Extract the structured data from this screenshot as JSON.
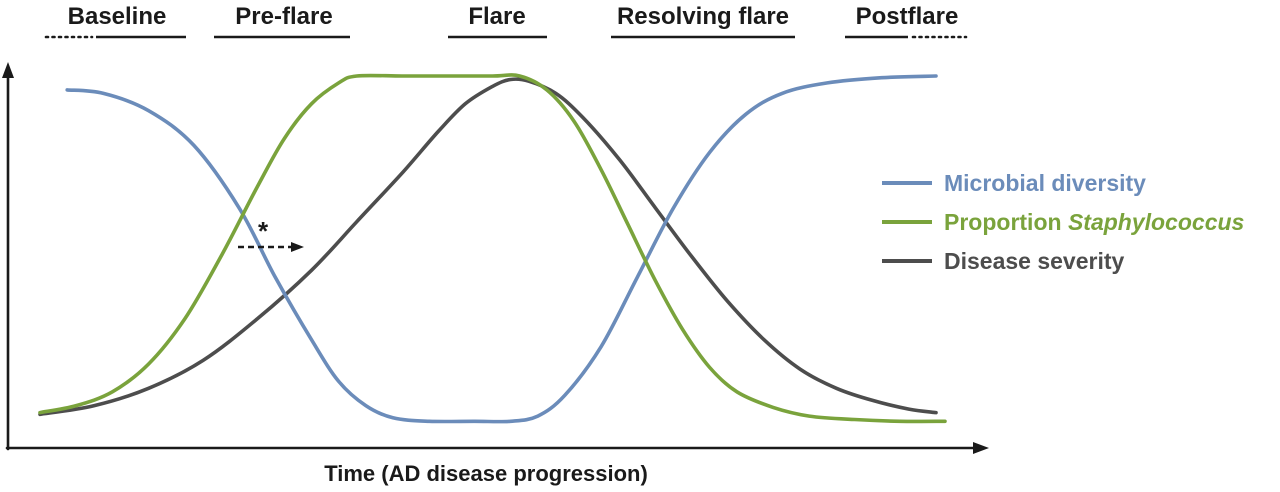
{
  "chart_data": {
    "type": "line",
    "title": "",
    "xlabel": "Time (AD disease progression)",
    "ylabel": "",
    "x_range": [
      0,
      100
    ],
    "y_range": [
      0,
      1
    ],
    "grid": false,
    "legend_position": "right",
    "phases": [
      "Baseline",
      "Pre-flare",
      "Flare",
      "Resolving flare",
      "Postflare"
    ],
    "annotation_symbol": "*",
    "series": [
      {
        "name": "Microbial diversity",
        "color": "#6b8cba",
        "x": [
          3,
          7,
          12,
          17,
          22,
          26,
          30,
          33,
          36,
          39,
          43,
          48,
          52,
          55,
          58,
          62,
          66,
          70,
          74,
          78,
          82,
          87,
          93,
          99
        ],
        "y": [
          0.96,
          0.95,
          0.9,
          0.8,
          0.62,
          0.42,
          0.24,
          0.12,
          0.05,
          0.015,
          0.005,
          0.005,
          0.005,
          0.02,
          0.08,
          0.22,
          0.42,
          0.62,
          0.78,
          0.89,
          0.95,
          0.98,
          0.995,
          1.0
        ]
      },
      {
        "name": "Proportion Staphylococcus",
        "label_prefix": "Proportion ",
        "label_italic": "Staphylococcus",
        "color": "#7aa33c",
        "x": [
          0,
          4,
          8,
          12,
          16,
          20,
          24,
          27,
          30,
          33,
          35,
          40,
          45,
          50,
          53,
          56,
          59,
          62,
          65,
          68,
          71,
          74,
          77,
          81,
          85,
          90,
          95,
          100
        ],
        "y": [
          0.03,
          0.05,
          0.09,
          0.17,
          0.3,
          0.48,
          0.68,
          0.82,
          0.92,
          0.98,
          1.0,
          1.0,
          1.0,
          1.0,
          1.0,
          0.96,
          0.87,
          0.73,
          0.57,
          0.41,
          0.27,
          0.16,
          0.09,
          0.045,
          0.02,
          0.01,
          0.005,
          0.005
        ]
      },
      {
        "name": "Disease severity",
        "color": "#4d4d4d",
        "x": [
          0,
          6,
          12,
          18,
          24,
          30,
          35,
          40,
          44,
          47,
          50,
          52,
          54,
          57,
          60,
          64,
          68,
          72,
          76,
          80,
          84,
          88,
          92,
          96,
          99
        ],
        "y": [
          0.025,
          0.05,
          0.1,
          0.18,
          0.3,
          0.44,
          0.58,
          0.72,
          0.84,
          0.92,
          0.97,
          0.99,
          0.985,
          0.95,
          0.88,
          0.76,
          0.62,
          0.48,
          0.35,
          0.24,
          0.155,
          0.1,
          0.065,
          0.04,
          0.03
        ]
      }
    ]
  }
}
